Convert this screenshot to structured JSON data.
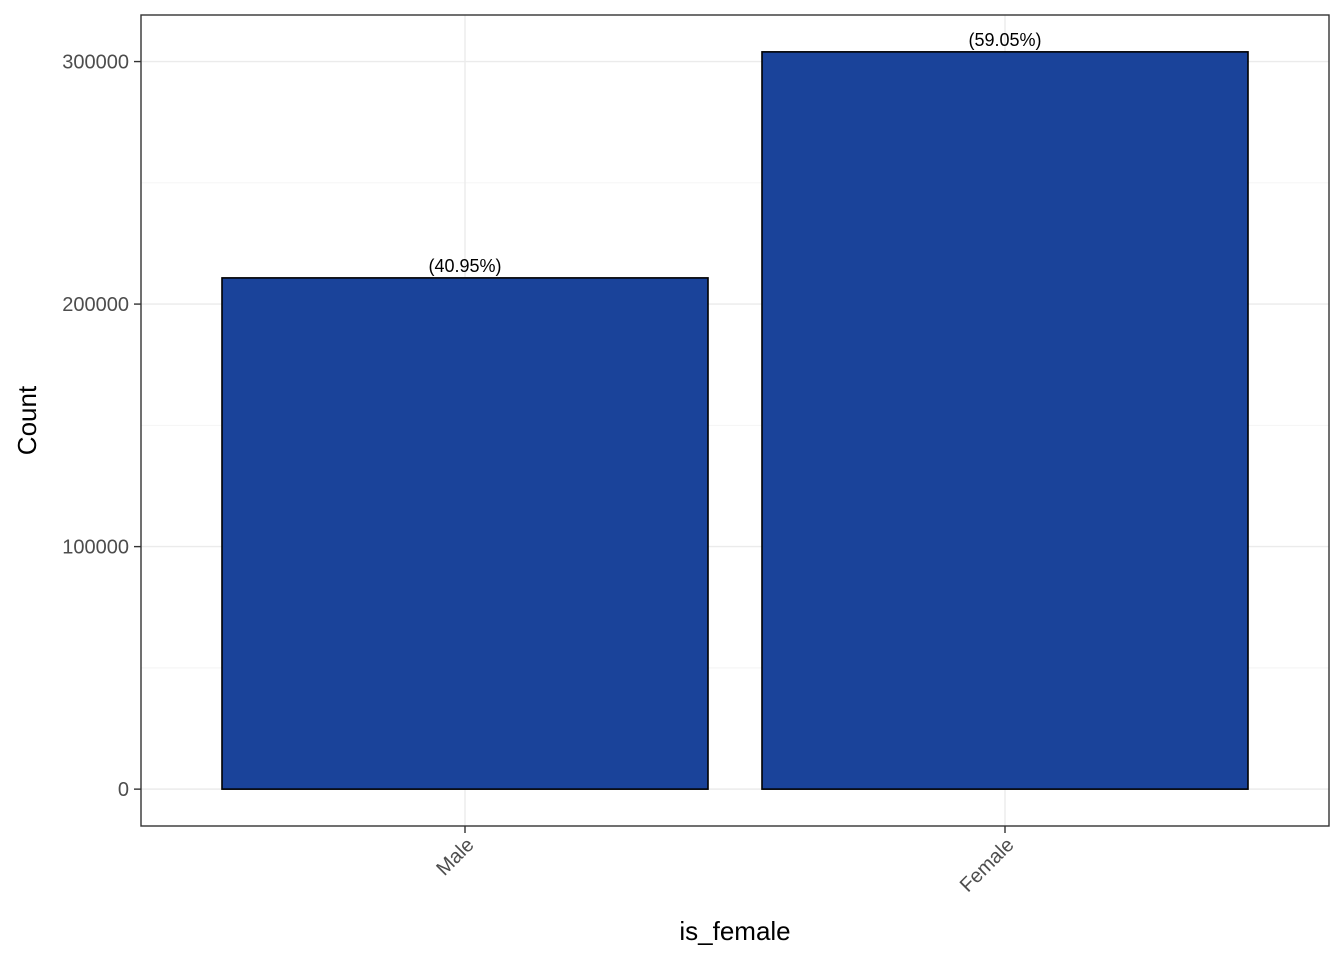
{
  "chart_data": {
    "type": "bar",
    "categories": [
      "Male",
      "Female"
    ],
    "values": [
      210800,
      304000
    ],
    "data_labels": [
      "(40.95%)",
      "(59.05%)"
    ],
    "title": "",
    "xlabel": "is_female",
    "ylabel": "Count",
    "ylim": [
      -15200,
      319200
    ],
    "yticks": [
      0,
      100000,
      200000,
      300000
    ],
    "ytick_labels": [
      "0",
      "100000",
      "200000",
      "300000"
    ],
    "grid": true,
    "legend": "none",
    "bar_fill": "#1a439a",
    "bar_stroke": "#000000"
  }
}
